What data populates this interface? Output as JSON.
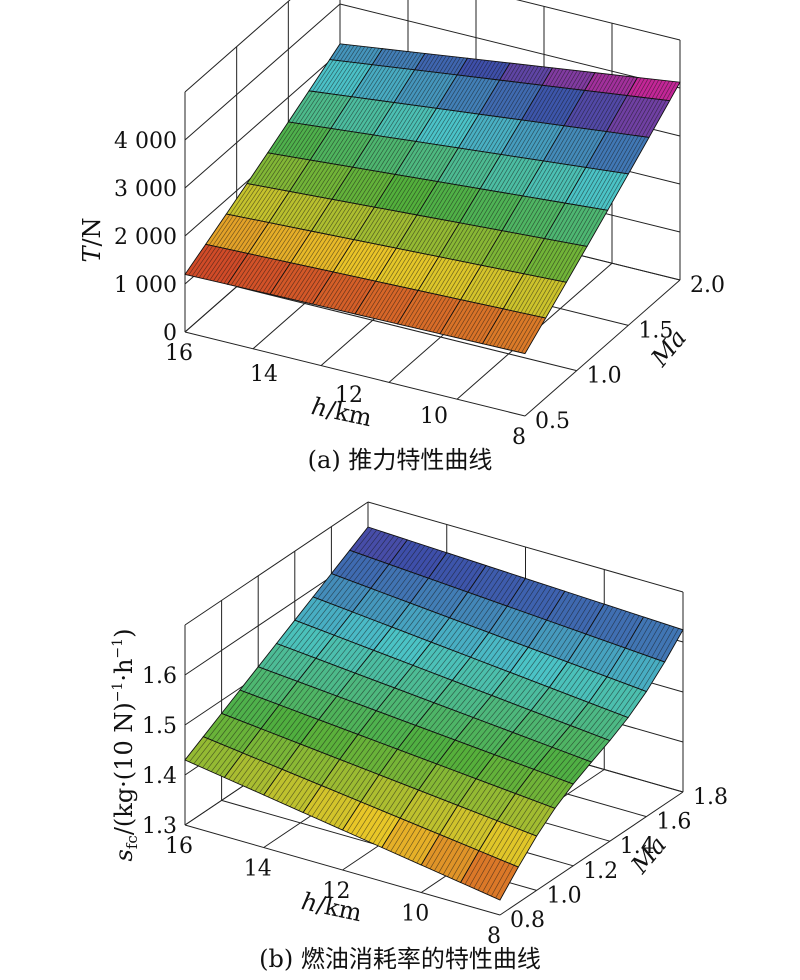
{
  "chart_data": [
    {
      "type": "surface",
      "caption": "(a) 推力特性曲线",
      "zlabel_italic": "T",
      "zlabel_rest": "/N",
      "xlabel_italic": "h",
      "xlabel_rest": "/km",
      "ylabel_italic": "Ma",
      "x_ticks": [
        "16",
        "14",
        "12",
        "10",
        "8"
      ],
      "y_ticks": [
        "0.5",
        "1.0",
        "1.5",
        "2.0"
      ],
      "z_ticks": [
        "0",
        "1 000",
        "2 000",
        "3 000",
        "4 000"
      ],
      "xlim": [
        8,
        16
      ],
      "ylim": [
        0.5,
        2.0
      ],
      "zlim": [
        0,
        4000
      ],
      "h_values": [
        16,
        15,
        14,
        13,
        12,
        11,
        10,
        9,
        8
      ],
      "ma_values": [
        0.5,
        0.7,
        0.9,
        1.1,
        1.3,
        1.5,
        1.7,
        1.9,
        2.0
      ],
      "surface_corners": {
        "h16_ma0.5": 1200,
        "h16_ma2.0": 3050,
        "h8_ma0.5": 1300,
        "h8_ma2.0": 4000
      }
    },
    {
      "type": "surface",
      "caption": "(b) 燃油消耗率的特性曲线",
      "zlabel_italic": "s",
      "zlabel_sub": "fc",
      "zlabel_rest": "/(kg·(10 N)",
      "zlabel_sup1": "−1",
      "zlabel_mid": "·h",
      "zlabel_sup2": "−1",
      "zlabel_end": ")",
      "xlabel_italic": "h",
      "xlabel_rest": "/km",
      "ylabel_italic": "Ma",
      "x_ticks": [
        "16",
        "14",
        "12",
        "10",
        "8"
      ],
      "y_ticks": [
        "0.8",
        "1.0",
        "1.2",
        "1.4",
        "1.6",
        "1.8"
      ],
      "z_ticks": [
        "1.3",
        "1.4",
        "1.5",
        "1.6"
      ],
      "xlim": [
        8,
        16
      ],
      "ylim": [
        0.8,
        1.8
      ],
      "zlim": [
        1.3,
        1.7
      ],
      "h_values": [
        16,
        15,
        14,
        13,
        12,
        11,
        10,
        9,
        8
      ],
      "ma_values": [
        0.8,
        0.9,
        1.0,
        1.1,
        1.2,
        1.3,
        1.4,
        1.5,
        1.6,
        1.7,
        1.8
      ]
    }
  ]
}
